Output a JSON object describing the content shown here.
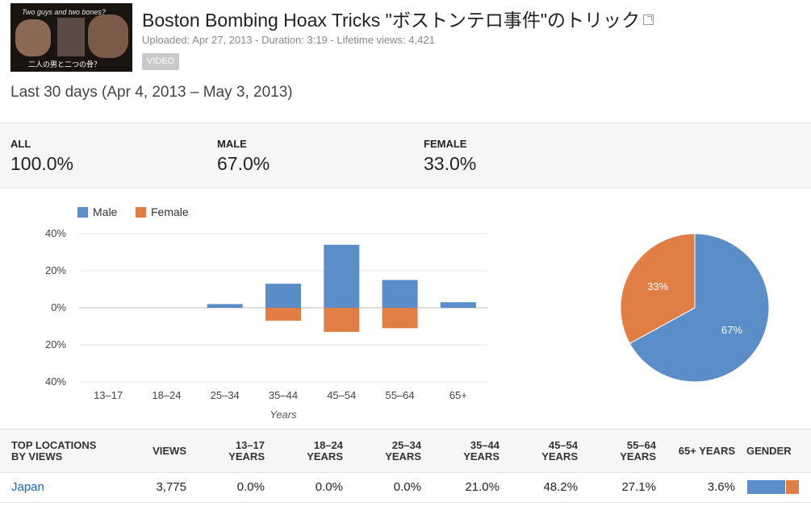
{
  "video": {
    "title": "Boston Bombing Hoax Tricks \"ボストンテロ事件\"のトリック",
    "uploaded": "Uploaded: Apr 27, 2013",
    "duration": "Duration: 3:19",
    "lifetime_views": "Lifetime views: 4,421",
    "separator": " - ",
    "badge": "VIDEO",
    "thumb_caption_top": "Two guys and two bones?",
    "thumb_caption_bottom": "二人の男と二つの骨？"
  },
  "period": "Last 30 days (Apr 4, 2013 – May 3, 2013)",
  "summary": [
    {
      "label": "ALL",
      "value": "100.0%"
    },
    {
      "label": "MALE",
      "value": "67.0%"
    },
    {
      "label": "FEMALE",
      "value": "33.0%"
    }
  ],
  "colors": {
    "male": "#5b8dc9",
    "female": "#e07e46",
    "link": "#1a67c4"
  },
  "chart_data": [
    {
      "type": "bar",
      "xlabel": "Years",
      "ylabel": "",
      "categories": [
        "13–17",
        "18–24",
        "25–34",
        "35–44",
        "45–54",
        "55–64",
        "65+"
      ],
      "series": [
        {
          "name": "Male",
          "values": [
            0,
            0,
            2,
            13,
            34,
            15,
            3
          ]
        },
        {
          "name": "Female",
          "values": [
            0,
            0,
            0,
            -7,
            -13,
            -11,
            0
          ]
        }
      ],
      "yticks": [
        "40%",
        "20%",
        "0%",
        "20%",
        "40%"
      ],
      "ylim": [
        -40,
        40
      ],
      "legend": "top-left",
      "grid": true
    },
    {
      "type": "pie",
      "labels": [
        "Male",
        "Female"
      ],
      "values": [
        67,
        33
      ],
      "slice_labels": [
        "67%",
        "33%"
      ]
    }
  ],
  "table": {
    "headers": [
      "TOP LOCATIONS\nBY VIEWS",
      "VIEWS",
      "13–17\nYEARS",
      "18–24\nYEARS",
      "25–34\nYEARS",
      "35–44\nYEARS",
      "45–54\nYEARS",
      "55–64\nYEARS",
      "65+ YEARS",
      "GENDER"
    ],
    "header_lines": [
      [
        "TOP LOCATIONS",
        "BY VIEWS"
      ],
      [
        "VIEWS"
      ],
      [
        "13–17",
        "YEARS"
      ],
      [
        "18–24",
        "YEARS"
      ],
      [
        "25–34",
        "YEARS"
      ],
      [
        "35–44",
        "YEARS"
      ],
      [
        "45–54",
        "YEARS"
      ],
      [
        "55–64",
        "YEARS"
      ],
      [
        "65+ YEARS"
      ],
      [
        "GENDER"
      ]
    ],
    "rows": [
      {
        "location": "Japan",
        "views": "3,775",
        "ages": [
          "0.0%",
          "0.0%",
          "0.0%",
          "21.0%",
          "48.2%",
          "27.1%",
          "3.6%"
        ],
        "gender_male_fraction": 0.74
      }
    ]
  }
}
